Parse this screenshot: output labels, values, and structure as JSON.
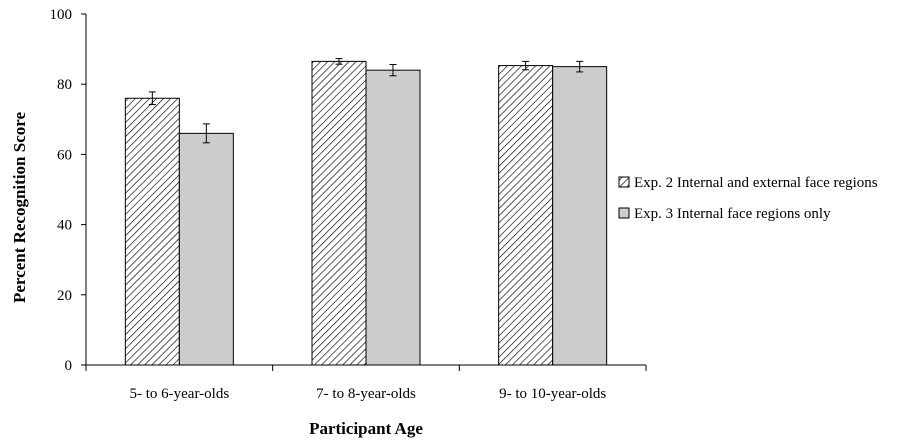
{
  "chart_data": {
    "type": "bar",
    "title": "",
    "xlabel": "Participant Age",
    "ylabel": "Percent Recognition Score",
    "ylim": [
      0,
      100
    ],
    "yticks": [
      0,
      20,
      40,
      60,
      80,
      100
    ],
    "grid": false,
    "legend_position": "right",
    "categories": [
      "5- to 6-year-olds",
      "7- to 8-year-olds",
      "9- to 10-year-olds"
    ],
    "series": [
      {
        "name": "Exp. 2 Internal and external face regions",
        "pattern": "diagonal-hatch",
        "color": "#ffffff",
        "values": [
          76,
          86.5,
          85.3
        ],
        "errors": [
          1.8,
          0.8,
          1.2
        ]
      },
      {
        "name": "Exp. 3 Internal face regions only",
        "pattern": "solid",
        "color": "#cccccc",
        "values": [
          66,
          84,
          85
        ],
        "errors": [
          2.7,
          1.6,
          1.5
        ]
      }
    ]
  }
}
